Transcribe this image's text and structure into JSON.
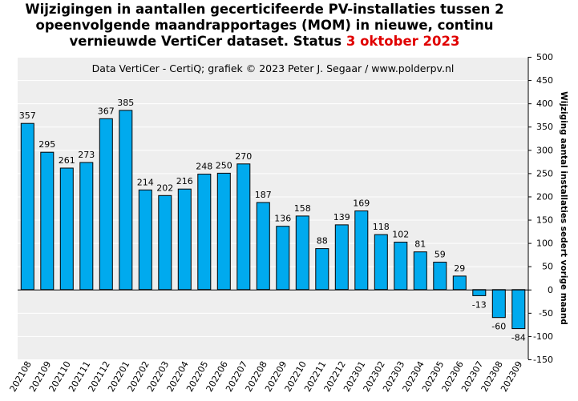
{
  "title": {
    "line1": "Wijzigingen in aantallen gecerticifeerde PV-installaties tussen 2",
    "line2": "opeenvolgende maandrapportages (MOM) in nieuwe, continu",
    "line3_prefix": "vernieuwde VertiCer dataset. Status ",
    "status_date": "3 oktober 2023"
  },
  "colors": {
    "bar_fill": "#00aaee",
    "bar_stroke": "#000000",
    "plot_background": "#eeeeee",
    "grid": "#ffffff",
    "accent": "#e00000"
  },
  "chart_data": {
    "type": "bar",
    "subtitle": "Data VertiCer - CertiQ; grafiek © 2023 Peter J. Segaar / www.polderpv.nl",
    "categories": [
      "202108",
      "202109",
      "202110",
      "202111",
      "202112",
      "202201",
      "202202",
      "202203",
      "202204",
      "202205",
      "202206",
      "202207",
      "202208",
      "202209",
      "202210",
      "202211",
      "202212",
      "202301",
      "202302",
      "202303",
      "202304",
      "202305",
      "202306",
      "202307",
      "202308",
      "202309"
    ],
    "values": [
      357,
      295,
      261,
      273,
      367,
      385,
      214,
      202,
      216,
      248,
      250,
      270,
      187,
      136,
      158,
      88,
      139,
      169,
      118,
      102,
      81,
      59,
      29,
      -13,
      -60,
      -84
    ],
    "data_labels": [
      "357",
      "295",
      "261",
      "273",
      "367",
      "385",
      "214",
      "202",
      "216",
      "248",
      "250",
      "270",
      "187",
      "136",
      "158",
      "88",
      "139",
      "169",
      "118",
      "102",
      "81",
      "59",
      "29",
      "-13",
      "-60",
      "-84"
    ],
    "ylabel": "Wijziging aantal installaties sedert vorige maand",
    "ylim": [
      -150,
      500
    ],
    "yticks": [
      500,
      450,
      400,
      350,
      300,
      250,
      200,
      150,
      100,
      50,
      0,
      -50,
      -100,
      -150
    ],
    "ytick_labels": [
      "500",
      "450",
      "400",
      "350",
      "300",
      "250",
      "200",
      "150",
      "100",
      "50",
      "0",
      "-50",
      "-100",
      "-150"
    ],
    "y_axis_side": "right",
    "grid": true,
    "legend": "none"
  }
}
